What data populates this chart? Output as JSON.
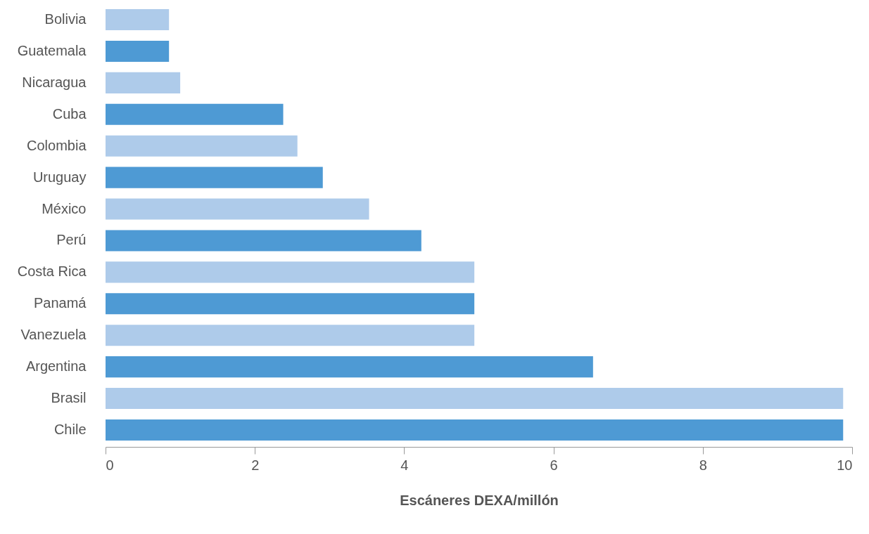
{
  "chart_data": {
    "type": "bar",
    "orientation": "horizontal",
    "xlabel": "Escáneres DEXA/millón",
    "categories": [
      "Bolivia",
      "Guatemala",
      "Nicaragua",
      "Cuba",
      "Colombia",
      "Uruguay",
      "México",
      "Perú",
      "Costa Rica",
      "Panamá",
      "Vanezuela",
      "Argentina",
      "Brasil",
      "Chile"
    ],
    "values": [
      0.85,
      0.85,
      1.0,
      2.38,
      2.57,
      2.91,
      3.53,
      4.23,
      4.94,
      4.94,
      4.94,
      6.53,
      9.88,
      9.88
    ],
    "colors": [
      "#aecbea",
      "#4e9ad4",
      "#aecbea",
      "#4e9ad4",
      "#aecbea",
      "#4e9ad4",
      "#aecbea",
      "#4e9ad4",
      "#aecbea",
      "#4e9ad4",
      "#aecbea",
      "#4e9ad4",
      "#aecbea",
      "#4e9ad4"
    ],
    "xlim": [
      0,
      10
    ],
    "xticks": [
      0,
      2,
      4,
      6,
      8,
      10
    ],
    "grid": false
  }
}
